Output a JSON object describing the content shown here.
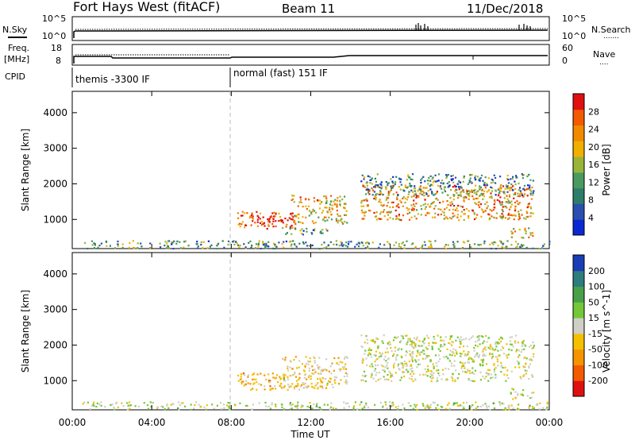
{
  "header": {
    "station": "Fort Hays West (fitACF)",
    "beam": "Beam 11",
    "date": "11/Dec/2018"
  },
  "noise_panel": {
    "left_label": "N.Sky",
    "left_ticks": [
      "10^5",
      "10^0"
    ],
    "right_label": "N.Search",
    "right_ticks": [
      "10^5",
      "10^0"
    ],
    "right_legend_style": "......."
  },
  "freq_panel": {
    "left_label_line1": "Freq.",
    "left_label_line2": "[MHz]",
    "left_ticks": [
      "18",
      "8"
    ],
    "right_label": "Nave",
    "right_ticks": [
      "60",
      "0"
    ],
    "right_legend_style": "...."
  },
  "cpid_panel": {
    "label": "CPID",
    "programs": [
      {
        "name": "themis -3300 IF",
        "start_hour": 0
      },
      {
        "name": "normal (fast) 151 IF",
        "start_hour": 8
      }
    ]
  },
  "power_panel": {
    "ylabel": "Slant Range [km]",
    "yticks": [
      "4000",
      "3000",
      "2000",
      "1000"
    ],
    "colorbar_label": "Power [dB]",
    "colorbar_ticks": [
      "28",
      "24",
      "20",
      "16",
      "12",
      "8",
      "4"
    ]
  },
  "velocity_panel": {
    "ylabel": "Slant Range [km]",
    "yticks": [
      "4000",
      "3000",
      "2000",
      "1000"
    ],
    "colorbar_label": "Velocity [m s^-1]",
    "colorbar_ticks": [
      "200",
      "100",
      "50",
      "15",
      "-15",
      "-50",
      "-100",
      "-200"
    ]
  },
  "xaxis": {
    "label": "Time UT",
    "ticks": [
      "00:00",
      "04:00",
      "08:00",
      "12:00",
      "16:00",
      "20:00",
      "00:00"
    ]
  },
  "colors": {
    "power_scale": [
      "#0a28d2",
      "#2a4fb0",
      "#2d7d6a",
      "#4a9a60",
      "#9ab43a",
      "#f0b000",
      "#f28a00",
      "#f45a00",
      "#e01010"
    ],
    "velocity_scale": [
      "#e01010",
      "#f45a00",
      "#f59400",
      "#f5c000",
      "#cfcfc5",
      "#74c838",
      "#48a048",
      "#2d7d7d",
      "#1a3cb4"
    ]
  },
  "chart_data": [
    {
      "type": "heatmap",
      "title": "Power",
      "x_range_hours": [
        0,
        24
      ],
      "y_range_km": [
        180,
        4600
      ],
      "value_units": "dB",
      "value_range": [
        0,
        32
      ],
      "scatter_regions": [
        {
          "t0": 8.3,
          "t1": 11.3,
          "r0": 760,
          "r1": 1240,
          "level": 27
        },
        {
          "t0": 9.2,
          "t1": 11.2,
          "r0": 880,
          "r1": 1060,
          "level": 30
        },
        {
          "t0": 11.0,
          "t1": 13.8,
          "r0": 900,
          "r1": 1700,
          "level": 20
        },
        {
          "t0": 10.5,
          "t1": 12.8,
          "r0": 600,
          "r1": 800,
          "level": 12
        },
        {
          "t0": 14.5,
          "t1": 23.2,
          "r0": 1000,
          "r1": 2000,
          "level": 22
        },
        {
          "t0": 14.5,
          "t1": 23.2,
          "r0": 1700,
          "r1": 2300,
          "level": 10
        },
        {
          "t0": 22.0,
          "t1": 23.2,
          "r0": 500,
          "r1": 800,
          "level": 18
        },
        {
          "t0": 0.5,
          "t1": 24.0,
          "r0": 200,
          "r1": 420,
          "level": 12
        }
      ]
    },
    {
      "type": "heatmap",
      "title": "Velocity",
      "x_range_hours": [
        0,
        24
      ],
      "y_range_km": [
        180,
        4600
      ],
      "value_units": "m s^-1",
      "value_range": [
        -250,
        250
      ],
      "scatter_regions": [
        {
          "t0": 8.3,
          "t1": 11.5,
          "r0": 760,
          "r1": 1240,
          "level": -80
        },
        {
          "t0": 10.5,
          "t1": 13.8,
          "r0": 800,
          "r1": 1700,
          "level": -40
        },
        {
          "t0": 14.5,
          "t1": 23.2,
          "r0": 1000,
          "r1": 2300,
          "level": 0
        },
        {
          "t0": 22.0,
          "t1": 23.2,
          "r0": 500,
          "r1": 800,
          "level": 0
        },
        {
          "t0": 0.5,
          "t1": 24.0,
          "r0": 200,
          "r1": 420,
          "level": 20
        }
      ]
    }
  ]
}
